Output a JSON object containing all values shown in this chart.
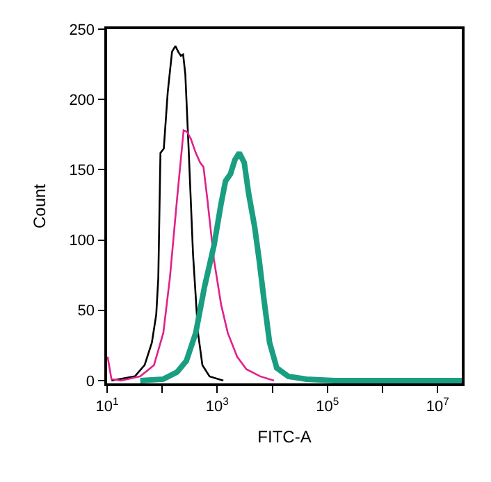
{
  "chart_data": {
    "type": "line",
    "xlabel": "FITC-A",
    "ylabel": "Count",
    "log": "x",
    "marker": "none",
    "line_style": "solid",
    "xlim": [
      10,
      27500000
    ],
    "ylim": [
      -2,
      250
    ],
    "xticks": [
      {
        "value": 10,
        "label": "10$^{1}$"
      },
      {
        "value": 100,
        "label": null
      },
      {
        "value": 1000,
        "label": "10$^{3}$"
      },
      {
        "value": 10000,
        "label": null
      },
      {
        "value": 100000,
        "label": "10$^{5}$"
      },
      {
        "value": 1000000,
        "label": null
      },
      {
        "value": 10000000,
        "label": "10$^{7}$"
      }
    ],
    "yticks": [
      0,
      50,
      100,
      150,
      200,
      250
    ],
    "series": [
      {
        "color": "#000000",
        "x": [
          12,
          32,
          48,
          65,
          78,
          85,
          93,
          107,
          126,
          151,
          174,
          195,
          219,
          240,
          263,
          302,
          363,
          447,
          537,
          724,
          1288
        ],
        "values": [
          0,
          3,
          11,
          27,
          47,
          73,
          162,
          165,
          205,
          234,
          238,
          234,
          231,
          232,
          218,
          165,
          90,
          34,
          11,
          3,
          0
        ]
      },
      {
        "color": "#e0218a",
        "x": [
          10.2,
          12,
          18,
          40,
          71,
          105,
          138,
          186,
          245,
          282,
          331,
          407,
          490,
          562,
          661,
          871,
          1175,
          1549,
          2291,
          3388,
          6026,
          10715
        ],
        "values": [
          17,
          1,
          0,
          3,
          11,
          34,
          73,
          129,
          178,
          177,
          172,
          162,
          155,
          152,
          129,
          86,
          54,
          34,
          17,
          8,
          3,
          0
        ]
      },
      {
        "color": "#1a9e82",
        "x": [
          40,
          105,
          186,
          275,
          407,
          589,
          871,
          1175,
          1413,
          1738,
          2089,
          2512,
          3090,
          3715,
          4786,
          5754,
          7079,
          8913,
          12023,
          19498,
          41687,
          134896,
          27500000
        ],
        "values": [
          0,
          1,
          6,
          14,
          34,
          67,
          96,
          126,
          142,
          147,
          157,
          162,
          155,
          133,
          109,
          86,
          57,
          27,
          9,
          3,
          1,
          0,
          0
        ]
      }
    ]
  }
}
